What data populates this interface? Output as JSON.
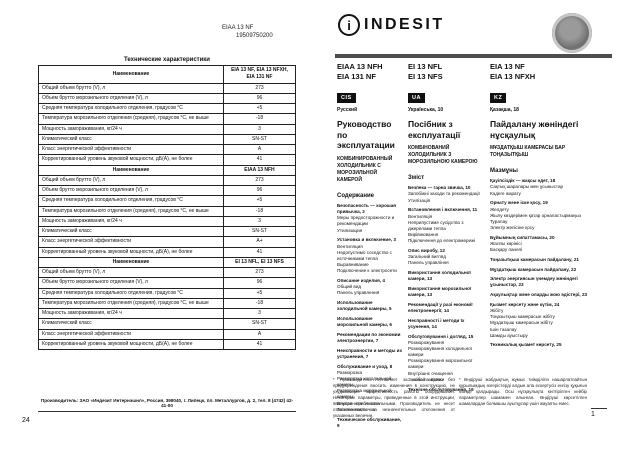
{
  "left_page": {
    "part_number_line1": "EIAA 13 NF",
    "part_number_line2": "19509750200",
    "table": {
      "title": "Технические характеристики",
      "name_header": "Наименование",
      "row_labels": [
        "Общий объем брутто (V), л",
        "Объем брутто морозильного отделения (V), л",
        "Средняя температура холодильного отделения, градусов °C",
        "Температура морозильного отделения (средняя), градусов °C, не выше",
        "Мощность замораживания, кг/24 ч",
        "Климатический класс",
        "Класс энергетической эффективности",
        "Корректированный уровень звуковой мощности, дБ(А), не более"
      ],
      "sections": [
        {
          "models": "EIA 13 NF, EIA 13 NFXH, EIA 131 NF",
          "values": [
            "273",
            "96",
            "+5",
            "-18",
            "3",
            "SN-ST",
            "A",
            "41"
          ]
        },
        {
          "models": "EIAA 13 NFH",
          "values": [
            "273",
            "96",
            "+5",
            "-18",
            "3",
            "SN-ST",
            "A+",
            "41"
          ]
        },
        {
          "models": "EI 13 NFL, EI 13 NFS",
          "values": [
            "273",
            "96",
            "+5",
            "-18",
            "3",
            "SN-ST",
            "A",
            "41"
          ]
        }
      ]
    },
    "footer": "Производитель: ЗАО «Индезит Интернэшнл», Россия, 398040, г. Липецк, пл. Металлургов, д. 2, тел. 8 (4742) 42-41-00",
    "page_number": "24"
  },
  "cover": {
    "brand": "INDESIT",
    "logo_letter": "i",
    "stamp_icon": "quality-stamp",
    "models": [
      [
        "EIAA 13 NFH",
        "EIA 131 NF"
      ],
      [
        "EI 13 NFL",
        "EI 13 NFS"
      ],
      [
        "EIA 13 NF",
        "EIA 13 NFXH"
      ]
    ],
    "badges": [
      {
        "code": "CIS",
        "label": "Русский"
      },
      {
        "code": "UA",
        "label": "Українська, 10"
      },
      {
        "code": "KZ",
        "label": "Қазақша, 18"
      }
    ],
    "columns": [
      {
        "title": "Руководство по эксплуатации",
        "subtitle": "КОМБИНИРОВАННЫЙ ХОЛОДИЛЬНИК С МОРОЗИЛЬНОЙ КАМЕРОЙ",
        "heading": "Содержание",
        "entries": [
          [
            "m",
            "Безопасность — хорошая привычка, 2"
          ],
          [
            "s",
            "Меры предосторожности и рекомендации"
          ],
          [
            "s",
            "Утилизация"
          ],
          [
            "m",
            "Установка и включение, 3"
          ],
          [
            "s",
            "Вентиляция"
          ],
          [
            "s",
            "Недопустимо соседство с источниками тепла"
          ],
          [
            "s",
            "Выравнивание"
          ],
          [
            "s",
            "Подключение к электросети"
          ],
          [
            "m",
            "Описание изделия, 4"
          ],
          [
            "s",
            "Общий вид"
          ],
          [
            "s",
            "Панель управления"
          ],
          [
            "m",
            "Использование холодильной камеры, 5"
          ],
          [
            "m",
            "Использование морозильной камеры, 6"
          ],
          [
            "m",
            "Рекомендации по экономии электроэнергии, 7"
          ],
          [
            "m",
            "Неисправности и методы их устранения, 7"
          ],
          [
            "m",
            "Обслуживание и уход, 8"
          ],
          [
            "s",
            "Разморозка"
          ],
          [
            "s",
            "Разморозка холодильной камеры"
          ],
          [
            "s",
            "Разморозка морозильной камеры"
          ],
          [
            "s",
            "Внутренняя очистка"
          ],
          [
            "s",
            "Замена лампочки"
          ],
          [
            "m",
            "Техническое обслуживание, 9"
          ]
        ]
      },
      {
        "title": "Посібник з експлуатації",
        "subtitle": "КОМБІНОВАНИЙ ХОЛОДИЛЬНИК З МОРОЗИЛЬНОЮ КАМЕРОЮ",
        "heading": "Зміст",
        "entries": [
          [
            "m",
            "Безпека — гарна звичка, 10"
          ],
          [
            "s",
            "Запобіжні заходи та рекомендації"
          ],
          [
            "s",
            "Утилізація"
          ],
          [
            "m",
            "Встановлення і включення, 11"
          ],
          [
            "s",
            "Вентиляція"
          ],
          [
            "s",
            "Неприпустиме сусідство з джерелами тепла"
          ],
          [
            "s",
            "Вирівнювання"
          ],
          [
            "s",
            "Підключення до електромережі"
          ],
          [
            "m",
            "Опис виробу, 12"
          ],
          [
            "s",
            "Загальний вигляд"
          ],
          [
            "s",
            "Панель управління"
          ],
          [
            "m",
            "Використання холодильної камери, 13"
          ],
          [
            "m",
            "Використання морозильної камери, 13"
          ],
          [
            "m",
            "Рекомендації у разі економії електроенергії, 14"
          ],
          [
            "m",
            "Несправності і методи їх усунення, 14"
          ],
          [
            "m",
            "Обслуговування і догляд, 15"
          ],
          [
            "s",
            "Розморожування"
          ],
          [
            "s",
            "Розморожування холодильної камери"
          ],
          [
            "s",
            "Розморожування морозильної камери"
          ],
          [
            "s",
            "Внутрішнє очищення"
          ],
          [
            "s",
            "Заміна лампочки"
          ],
          [
            "m",
            "Технічне обслуговування, 16"
          ]
        ]
      },
      {
        "title": "Пайдалану жөніндегі нұсқаулық",
        "subtitle": "МҰЗДАТҚЫШ КАМЕРАСЫ БАР ТОҢАЗЫТҚЫШ",
        "heading": "Мазмұны",
        "entries": [
          [
            "m",
            "Қауіпсіздік — жақсы әдет, 18"
          ],
          [
            "s",
            "Сақтық шаралары мен ұсыныстар"
          ],
          [
            "s",
            "Кәдеге жарату"
          ],
          [
            "m",
            "Орнату және іске қосу, 19"
          ],
          [
            "s",
            "Желдету"
          ],
          [
            "s",
            "Жылу көздерімен қатар орналастырмаңыз"
          ],
          [
            "s",
            "Туралау"
          ],
          [
            "s",
            "Электр желісіне қосу"
          ],
          [
            "m",
            "Бұйымның сипаттамасы, 20"
          ],
          [
            "s",
            "Жалпы көрінісі"
          ],
          [
            "s",
            "Басқару панелі"
          ],
          [
            "m",
            "Тоңазытқыш камерасын пайдалану, 21"
          ],
          [
            "m",
            "Мұздатқыш камерасын пайдалану, 22"
          ],
          [
            "m",
            "Электр энергиясын үнемдеу жөніндегі ұсыныстар, 23"
          ],
          [
            "m",
            "Ақаулықтар және оларды жою әдістері, 23"
          ],
          [
            "m",
            "Қызмет көрсету және күтім, 24"
          ],
          [
            "s",
            "Жібіту"
          ],
          [
            "s",
            "Тоңазытқыш камерасын жібіту"
          ],
          [
            "s",
            "Мұздатқыш камерасын жібіту"
          ],
          [
            "s",
            "Ішін тазалау"
          ],
          [
            "s",
            "Шамды ауыстыру"
          ],
          [
            "m",
            "Техникалық қызмет көрсету, 25"
          ]
        ]
      }
    ],
    "footnotes": [
      "* Производитель оставляет за собой право без предупреждения вносить изменения в конструкцию, не ухудшающие эффективность работы оборудования. Некоторые параметры, приведенные в этой инструкции, являются приблизительными. Производитель не несет ответственности за незначительные отклонения от указанных величин.",
      "* Өндіруші жабдықтың жұмыс тиімділігін нашарлатпайтын құрылымдық өзгерістерді алдын ала ескертусіз енгізу құқығын өзінде қалдырады. Осы нұсқаулықта келтірілген кейбір параметрлер шамамен алынған. Өндіруші көрсетілген шамалардан болмашы ауытқулар үшін жауапты емес."
    ],
    "page_number": "1"
  }
}
